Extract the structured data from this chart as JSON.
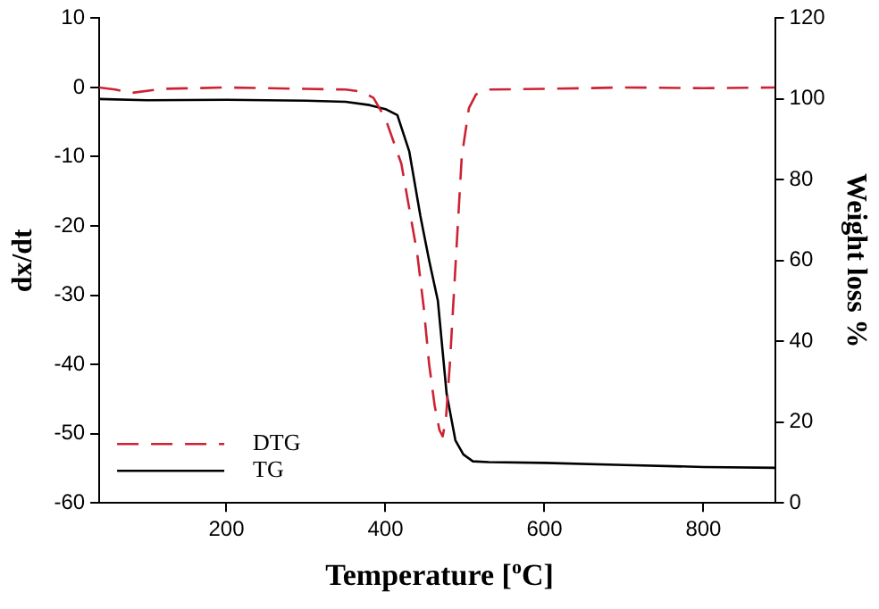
{
  "chart_data": {
    "type": "line",
    "xlabel": "Temperature [$^{o}$C]",
    "ylabel": "dx/dt",
    "y2label": "Weight loss %",
    "xlim": [
      40,
      890
    ],
    "xticks": [
      200,
      400,
      600,
      800
    ],
    "ylim": [
      -60,
      10
    ],
    "yticks": [
      -60,
      -50,
      -40,
      -30,
      -20,
      -10,
      0,
      10
    ],
    "y2lim": [
      0,
      120
    ],
    "y2ticks": [
      0,
      20,
      40,
      60,
      80,
      100,
      120
    ],
    "grid": false,
    "legend": "bottom left",
    "marker": "none",
    "series": [
      {
        "name": "DTG",
        "color": "#cc2233",
        "line_style": "dashed",
        "x": [
          40,
          60,
          80,
          120,
          200,
          300,
          350,
          370,
          385,
          400,
          420,
          440,
          448,
          455,
          462,
          468,
          472,
          476,
          481,
          486,
          490,
          496,
          505,
          514,
          530,
          600,
          700,
          800,
          890
        ],
        "values": [
          0,
          -0.3,
          -0.8,
          -0.2,
          0,
          -0.2,
          -0.3,
          -0.6,
          -1.5,
          -4.5,
          -11,
          -24,
          -31.6,
          -40,
          -46,
          -49.5,
          -50.4,
          -48,
          -40,
          -30,
          -22,
          -10,
          -3,
          -1,
          -0.3,
          -0.2,
          0,
          -0.1,
          0
        ]
      },
      {
        "name": "TG",
        "color": "#000000",
        "line_style": "solid",
        "axis": "y2",
        "x": [
          40,
          100,
          200,
          300,
          350,
          380,
          400,
          415,
          430,
          444,
          455,
          466,
          477,
          488,
          498,
          510,
          530,
          600,
          700,
          800,
          890
        ],
        "values": [
          100,
          99.7,
          99.8,
          99.6,
          99.3,
          98.5,
          97.5,
          96,
          87,
          71,
          60,
          50,
          27,
          15.5,
          12,
          10.3,
          10.1,
          9.9,
          9.4,
          8.9,
          8.7
        ]
      }
    ]
  }
}
